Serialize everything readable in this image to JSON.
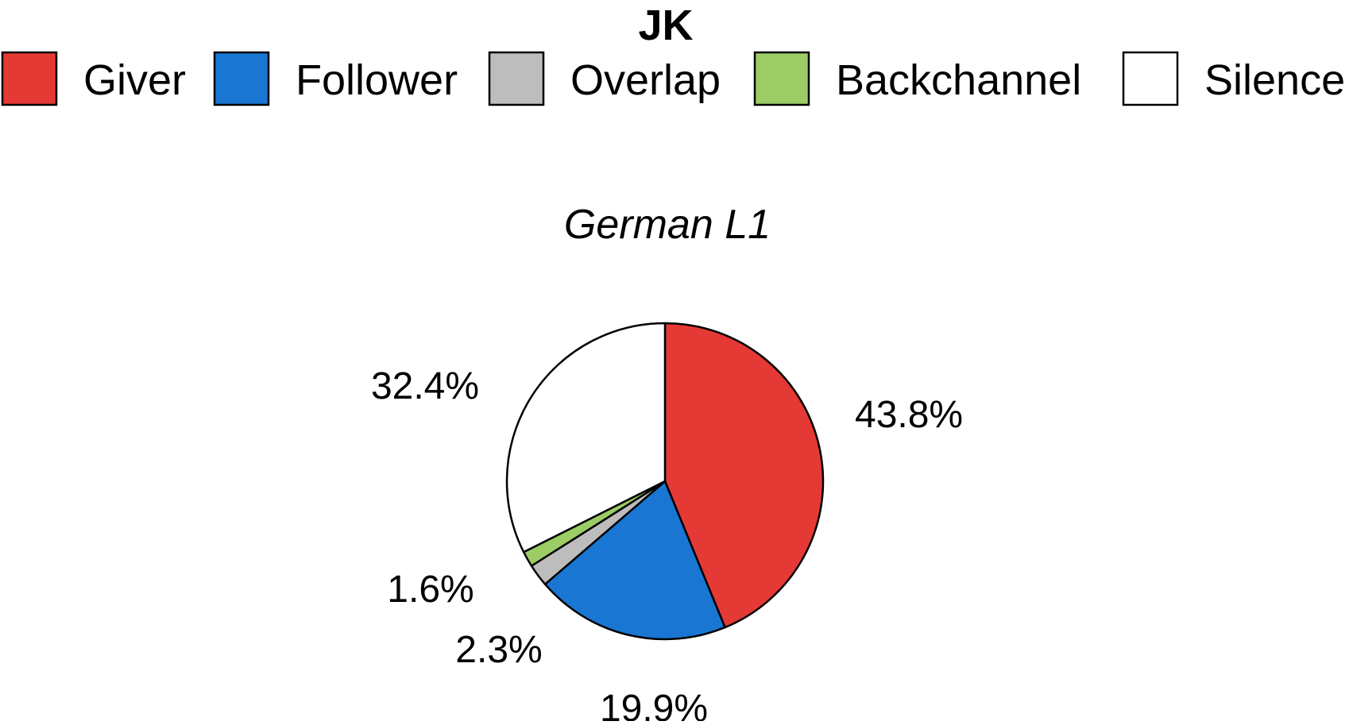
{
  "chart_data": {
    "type": "pie",
    "title": "JK",
    "subtitle": "German L1",
    "legend_position": "top",
    "categories": [
      "Giver",
      "Follower",
      "Overlap",
      "Backchannel",
      "Silence"
    ],
    "values": [
      43.8,
      19.9,
      2.3,
      1.6,
      32.4
    ],
    "value_labels": [
      "43.8%",
      "19.9%",
      "2.3%",
      "1.6%",
      "32.4%"
    ],
    "colors": [
      "#e53935",
      "#1976d2",
      "#bdbdbd",
      "#9ccc65",
      "#ffffff"
    ],
    "start_angle": "12 o'clock",
    "direction": "clockwise"
  }
}
